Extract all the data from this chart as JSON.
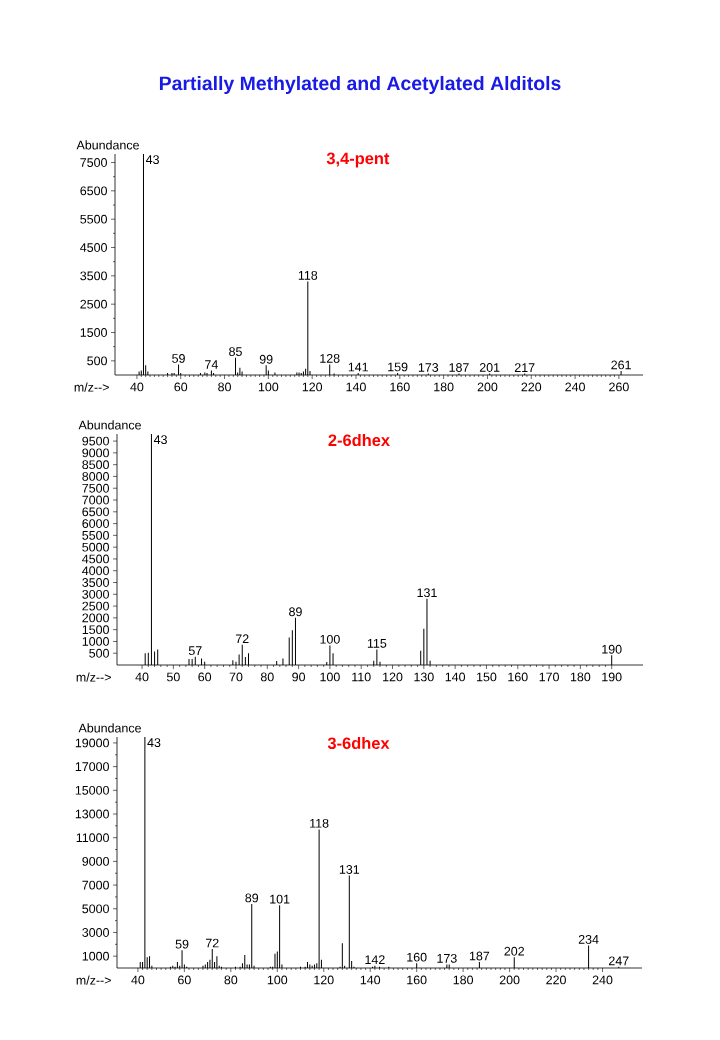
{
  "chart_data": [
    {
      "type": "bar",
      "title": "Partially Methylated and Acetylated Alditols",
      "subtitle": "3,4-pent",
      "xlabel": "m/z-->",
      "ylabel": "Abundance",
      "color": "#000000",
      "x": [
        41,
        42,
        43,
        44,
        45,
        54,
        56,
        57,
        59,
        60,
        69,
        71,
        72,
        74,
        75,
        85,
        86,
        87,
        88,
        99,
        100,
        103,
        113,
        114,
        115,
        116,
        117,
        118,
        119,
        128,
        130,
        141,
        159,
        173,
        187,
        201,
        217,
        261
      ],
      "values": [
        120,
        160,
        7800,
        340,
        120,
        70,
        70,
        70,
        370,
        70,
        70,
        90,
        70,
        160,
        70,
        610,
        90,
        260,
        120,
        340,
        160,
        90,
        90,
        90,
        70,
        120,
        220,
        3300,
        140,
        370,
        50,
        70,
        70,
        50,
        50,
        50,
        50,
        140
      ],
      "xlim": [
        30,
        271
      ],
      "ylim": [
        0,
        7800
      ],
      "xticks": [
        40,
        60,
        80,
        100,
        120,
        140,
        160,
        180,
        200,
        220,
        240,
        260
      ],
      "yticks": [
        500,
        1500,
        2500,
        3500,
        4500,
        5500,
        6500,
        7500
      ],
      "annotations": [
        {
          "text": "43",
          "x": 43,
          "y": 7800
        },
        {
          "text": "59",
          "x": 59,
          "y": 370
        },
        {
          "text": "74",
          "x": 74,
          "y": 160
        },
        {
          "text": "85",
          "x": 85,
          "y": 610
        },
        {
          "text": "99",
          "x": 99,
          "y": 340
        },
        {
          "text": "118",
          "x": 118,
          "y": 3300
        },
        {
          "text": "128",
          "x": 128,
          "y": 370
        },
        {
          "text": "141",
          "x": 141,
          "y": 70
        },
        {
          "text": "159",
          "x": 159,
          "y": 70
        },
        {
          "text": "173",
          "x": 173,
          "y": 50
        },
        {
          "text": "187",
          "x": 187,
          "y": 50
        },
        {
          "text": "201",
          "x": 201,
          "y": 50
        },
        {
          "text": "217",
          "x": 217,
          "y": 50
        },
        {
          "text": "261",
          "x": 261,
          "y": 140
        }
      ]
    },
    {
      "type": "bar",
      "subtitle": "2-6dhex",
      "xlabel": "m/z-->",
      "ylabel": "Abundance",
      "color": "#000000",
      "x": [
        41,
        42,
        43,
        44,
        45,
        55,
        56,
        57,
        59,
        60,
        69,
        70,
        71,
        72,
        73,
        74,
        83,
        85,
        87,
        88,
        89,
        99,
        100,
        101,
        114,
        115,
        116,
        129,
        130,
        131,
        132,
        190
      ],
      "values": [
        500,
        520,
        9800,
        570,
        660,
        250,
        250,
        350,
        280,
        140,
        200,
        140,
        450,
        860,
        340,
        500,
        170,
        280,
        1170,
        1470,
        2000,
        130,
        830,
        500,
        180,
        660,
        140,
        610,
        1540,
        2810,
        180,
        410
      ],
      "xlim": [
        32,
        200
      ],
      "ylim": [
        0,
        9800
      ],
      "xticks": [
        40,
        50,
        60,
        70,
        80,
        90,
        100,
        110,
        120,
        130,
        140,
        150,
        160,
        170,
        180,
        190
      ],
      "yticks": [
        500,
        1000,
        1500,
        2000,
        2500,
        3000,
        3500,
        4000,
        4500,
        5000,
        5500,
        6000,
        6500,
        7000,
        7500,
        8000,
        8500,
        9000,
        9500
      ],
      "annotations": [
        {
          "text": "43",
          "x": 43,
          "y": 9800
        },
        {
          "text": "57",
          "x": 57,
          "y": 350
        },
        {
          "text": "72",
          "x": 72,
          "y": 860
        },
        {
          "text": "89",
          "x": 89,
          "y": 2000
        },
        {
          "text": "100",
          "x": 100,
          "y": 830
        },
        {
          "text": "115",
          "x": 115,
          "y": 660
        },
        {
          "text": "131",
          "x": 131,
          "y": 2810
        },
        {
          "text": "190",
          "x": 190,
          "y": 410
        }
      ]
    },
    {
      "type": "bar",
      "subtitle": "3-6dhex",
      "xlabel": "m/z-->",
      "ylabel": "Abundance",
      "color": "#000000",
      "x": [
        41,
        42,
        43,
        44,
        45,
        46,
        54,
        55,
        56,
        57,
        58,
        59,
        60,
        61,
        68,
        69,
        70,
        71,
        72,
        73,
        74,
        75,
        76,
        82,
        84,
        85,
        86,
        87,
        88,
        89,
        90,
        97,
        98,
        99,
        100,
        101,
        102,
        110,
        112,
        113,
        114,
        115,
        116,
        117,
        118,
        119,
        127,
        128,
        129,
        131,
        132,
        133,
        141,
        142,
        144,
        148,
        160,
        173,
        174,
        187,
        202,
        234,
        247
      ],
      "values": [
        500,
        500,
        19500,
        900,
        1000,
        200,
        100,
        200,
        100,
        500,
        200,
        1500,
        300,
        100,
        200,
        300,
        500,
        700,
        1600,
        500,
        1000,
        200,
        100,
        100,
        100,
        400,
        1100,
        300,
        300,
        5400,
        200,
        100,
        100,
        1200,
        1400,
        5300,
        300,
        100,
        100,
        500,
        300,
        200,
        300,
        400,
        11700,
        700,
        100,
        2100,
        200,
        7800,
        600,
        100,
        100,
        200,
        100,
        100,
        400,
        300,
        300,
        500,
        900,
        1900,
        100
      ],
      "xlim": [
        31,
        257
      ],
      "ylim": [
        0,
        19500
      ],
      "xticks": [
        40,
        60,
        80,
        100,
        120,
        140,
        160,
        180,
        200,
        220,
        240
      ],
      "yticks": [
        1000,
        3000,
        5000,
        7000,
        9000,
        11000,
        13000,
        15000,
        17000,
        19000
      ],
      "annotations": [
        {
          "text": "43",
          "x": 43,
          "y": 19500
        },
        {
          "text": "59",
          "x": 59,
          "y": 1500
        },
        {
          "text": "72",
          "x": 72,
          "y": 1600
        },
        {
          "text": "89",
          "x": 89,
          "y": 5400
        },
        {
          "text": "101",
          "x": 101,
          "y": 5300
        },
        {
          "text": "118",
          "x": 118,
          "y": 11700
        },
        {
          "text": "131",
          "x": 131,
          "y": 7800
        },
        {
          "text": "142",
          "x": 142,
          "y": 200
        },
        {
          "text": "160",
          "x": 160,
          "y": 400
        },
        {
          "text": "173",
          "x": 173,
          "y": 300
        },
        {
          "text": "187",
          "x": 187,
          "y": 500
        },
        {
          "text": "202",
          "x": 202,
          "y": 900
        },
        {
          "text": "234",
          "x": 234,
          "y": 1900
        },
        {
          "text": "247",
          "x": 247,
          "y": 100
        }
      ]
    }
  ]
}
